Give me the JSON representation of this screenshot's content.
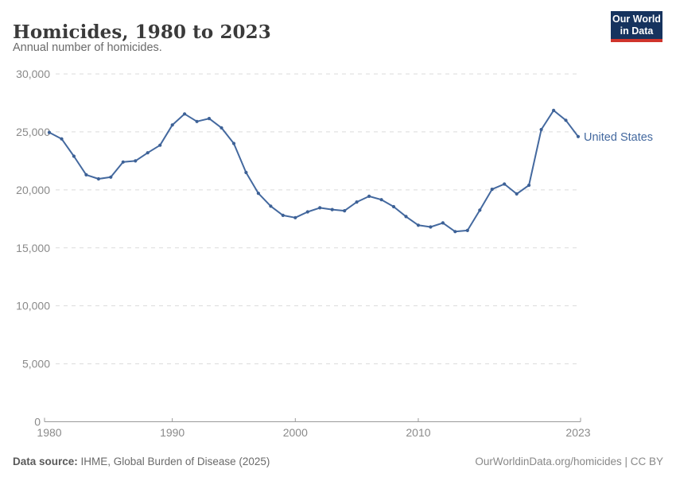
{
  "header": {
    "title": "Homicides, 1980 to 2023",
    "subtitle": "Annual number of homicides.",
    "logo": {
      "line1": "Our World",
      "line2": "in Data",
      "bg_color": "#16335e",
      "accent_color": "#d0342c"
    }
  },
  "chart_data": {
    "type": "line",
    "title": "Homicides, 1980 to 2023",
    "xlabel": "",
    "ylabel": "Annual number of homicides",
    "xlim": [
      1980,
      2023
    ],
    "ylim": [
      0,
      30000
    ],
    "grid": "horizontal-dashed",
    "legend_position": "end-of-line-label",
    "x_ticks": [
      1980,
      1990,
      2000,
      2010,
      2023
    ],
    "y_ticks": [
      0,
      5000,
      10000,
      15000,
      20000,
      25000,
      30000
    ],
    "y_tick_labels": [
      "0",
      "5,000",
      "10,000",
      "15,000",
      "20,000",
      "25,000",
      "30,000"
    ],
    "series": [
      {
        "name": "United States",
        "color": "#44699f",
        "marker_color": "#3d6196",
        "x": [
          1980,
          1981,
          1982,
          1983,
          1984,
          1985,
          1986,
          1987,
          1988,
          1989,
          1990,
          1991,
          1992,
          1993,
          1994,
          1995,
          1996,
          1997,
          1998,
          1999,
          2000,
          2001,
          2002,
          2003,
          2004,
          2005,
          2006,
          2007,
          2008,
          2009,
          2010,
          2011,
          2012,
          2013,
          2014,
          2015,
          2016,
          2017,
          2018,
          2019,
          2020,
          2021,
          2022,
          2023
        ],
        "values": [
          24950,
          24400,
          22900,
          21300,
          20950,
          21100,
          22400,
          22500,
          23200,
          23850,
          25600,
          26550,
          25900,
          26150,
          25350,
          24000,
          21500,
          19700,
          18600,
          17800,
          17600,
          18100,
          18450,
          18300,
          18200,
          18950,
          19450,
          19150,
          18550,
          17700,
          16950,
          16800,
          17150,
          16400,
          16500,
          18250,
          20050,
          20500,
          19650,
          20400,
          25200,
          26850,
          26000,
          24600
        ]
      }
    ]
  },
  "footer": {
    "source_label": "Data source:",
    "source_text": " IHME, Global Burden of Disease (2025)",
    "credit": "OurWorldinData.org/homicides | CC BY"
  }
}
